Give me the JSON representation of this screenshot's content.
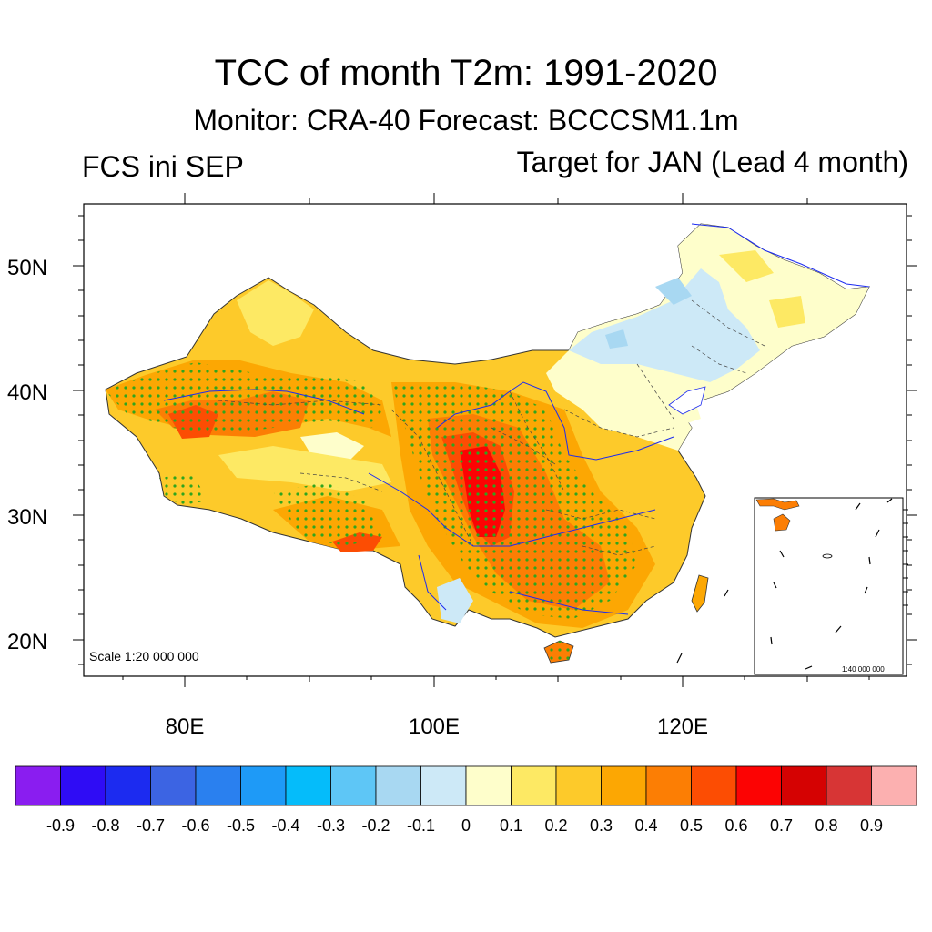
{
  "title": "TCC of month T2m: 1991-2020",
  "subtitle": "Monitor: CRA-40   Forecast: BCCCSM1.1m",
  "left_label": "FCS ini SEP",
  "right_label": "Target for JAN (Lead 4 month)",
  "map": {
    "lat_ticks": [
      "50N",
      "40N",
      "30N",
      "20N"
    ],
    "lon_ticks": [
      "80E",
      "100E",
      "120E"
    ],
    "scale_label": "Scale 1:20 000 000",
    "inset_scale_label": "1:40 000 000"
  },
  "colorbar": {
    "labels": [
      "-0.9",
      "-0.8",
      "-0.7",
      "-0.6",
      "-0.5",
      "-0.4",
      "-0.3",
      "-0.2",
      "-0.1",
      "0",
      "0.1",
      "0.2",
      "0.3",
      "0.4",
      "0.5",
      "0.6",
      "0.7",
      "0.8",
      "0.9"
    ],
    "colors": [
      "#8a1df0",
      "#2f0cf5",
      "#1c2bf0",
      "#3c64e3",
      "#2a80ef",
      "#1e9af7",
      "#05bcfa",
      "#5ec6f6",
      "#a8d8f2",
      "#cde9f7",
      "#fefecb",
      "#fde964",
      "#fdca2a",
      "#fca703",
      "#fc7e04",
      "#fc4d03",
      "#fc0303",
      "#d50202",
      "#d73535",
      "#fcb0b0"
    ]
  }
}
